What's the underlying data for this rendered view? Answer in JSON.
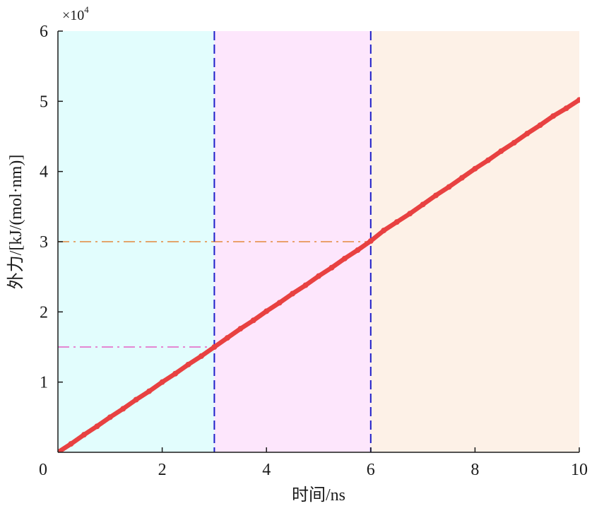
{
  "chart_data": {
    "type": "line",
    "xlabel": "时间/ns",
    "ylabel": "外力/[kJ/(mol·nm)]",
    "y_multiplier": {
      "base": "×10",
      "exponent": "4"
    },
    "xlim": [
      0,
      10
    ],
    "ylim": [
      0,
      6
    ],
    "x_ticks": [
      0,
      2,
      4,
      6,
      8,
      10
    ],
    "y_ticks": [
      1,
      2,
      3,
      4,
      5,
      6
    ],
    "grid": false,
    "legend": false,
    "regions": [
      {
        "x0": 0,
        "x1": 3,
        "color": "#e2fdfd"
      },
      {
        "x0": 3,
        "x1": 6,
        "color": "#fde6fc"
      },
      {
        "x0": 6,
        "x1": 10,
        "color": "#fdf1e7"
      }
    ],
    "vlines": [
      {
        "x": 3,
        "color": "#1e1ec8"
      },
      {
        "x": 6,
        "color": "#1e1ec8"
      }
    ],
    "hlines": [
      {
        "y": 1.5,
        "x0": 0,
        "x1": 3,
        "color": "#e45fc4"
      },
      {
        "y": 3,
        "x0": 0,
        "x1": 6,
        "color": "#e3883c"
      }
    ],
    "series": [
      {
        "color": "#e84141",
        "x": [
          0,
          0.25,
          0.5,
          0.75,
          1,
          1.25,
          1.5,
          1.75,
          2,
          2.25,
          2.5,
          2.75,
          3,
          3.25,
          3.5,
          3.75,
          4,
          4.25,
          4.5,
          4.75,
          5,
          5.25,
          5.5,
          5.75,
          6,
          6.25,
          6.5,
          6.75,
          7,
          7.25,
          7.5,
          7.75,
          8,
          8.25,
          8.5,
          8.75,
          9,
          9.25,
          9.5,
          9.75,
          10
        ],
        "y": [
          0,
          0.12,
          0.25,
          0.37,
          0.5,
          0.62,
          0.75,
          0.87,
          1.0,
          1.12,
          1.25,
          1.37,
          1.5,
          1.63,
          1.76,
          1.88,
          2.01,
          2.13,
          2.26,
          2.38,
          2.51,
          2.63,
          2.76,
          2.88,
          3.01,
          3.16,
          3.28,
          3.4,
          3.53,
          3.66,
          3.78,
          3.91,
          4.04,
          4.16,
          4.29,
          4.41,
          4.54,
          4.66,
          4.79,
          4.9,
          5.02
        ]
      }
    ]
  }
}
